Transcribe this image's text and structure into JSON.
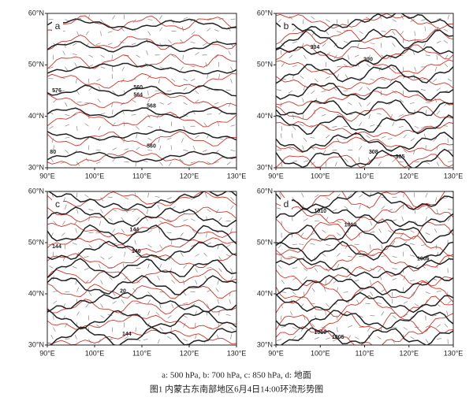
{
  "figure": {
    "panels": [
      {
        "label": "a",
        "contour_labels": [
          "576",
          "560",
          "564",
          "568",
          "560",
          "80"
        ]
      },
      {
        "label": "b",
        "contour_labels": [
          "304",
          "300",
          "308",
          "305"
        ]
      },
      {
        "label": "c",
        "contour_labels": [
          "144",
          "140",
          "144",
          "144",
          "20"
        ]
      },
      {
        "label": "d",
        "contour_labels": [
          "1010",
          "1010",
          "1005",
          "1010",
          "1005"
        ]
      }
    ],
    "yticks": [
      "60°N",
      "50°N",
      "40°N",
      "30°N"
    ],
    "xticks": [
      "90°E",
      "100°E",
      "110°E",
      "120°E",
      "130°E"
    ],
    "caption": {
      "legend": "a: 500 hPa, b: 700 hPa, c: 850 hPa, d: 地面",
      "title": "图1   内蒙古东南部地区6月4日14:00环流形势图"
    }
  }
}
